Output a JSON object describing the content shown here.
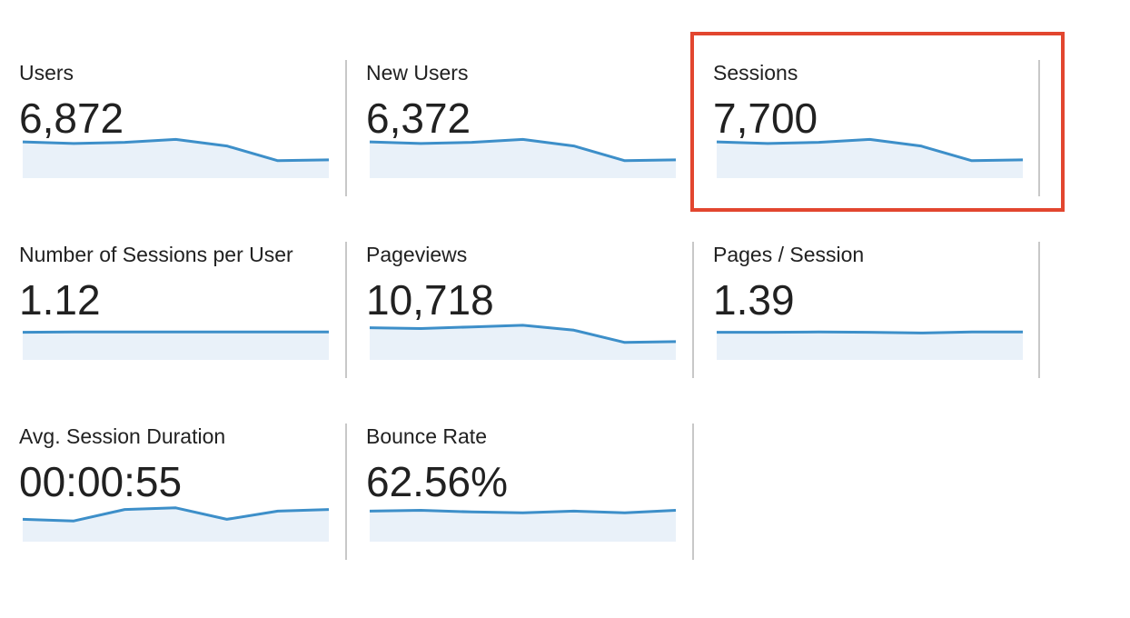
{
  "accent_color": "#3d8fc9",
  "area_fill": "#e9f1f9",
  "highlight_color": "#e2462f",
  "metrics": [
    {
      "label": "Users",
      "value": "6,872",
      "trend": [
        0.55,
        0.45,
        0.52,
        0.7,
        0.3,
        -0.6,
        -0.55
      ]
    },
    {
      "label": "New Users",
      "value": "6,372",
      "trend": [
        0.55,
        0.45,
        0.52,
        0.7,
        0.3,
        -0.6,
        -0.55
      ]
    },
    {
      "label": "Sessions",
      "value": "7,700",
      "trend": [
        0.55,
        0.45,
        0.52,
        0.7,
        0.3,
        -0.6,
        -0.55
      ]
    },
    {
      "label": "Number of Sessions per User",
      "value": "1.12",
      "trend": [
        0.02,
        0.04,
        0.04,
        0.04,
        0.04,
        0.04,
        0.04
      ]
    },
    {
      "label": "Pageviews",
      "value": "10,718",
      "trend": [
        0.3,
        0.25,
        0.35,
        0.45,
        0.15,
        -0.6,
        -0.55
      ]
    },
    {
      "label": "Pages / Session",
      "value": "1.39",
      "trend": [
        0.02,
        0.02,
        0.04,
        0.02,
        -0.02,
        0.04,
        0.04
      ]
    },
    {
      "label": "Avg. Session Duration",
      "value": "00:00:55",
      "trend": [
        -0.3,
        -0.4,
        0.3,
        0.4,
        -0.3,
        0.2,
        0.3
      ]
    },
    {
      "label": "Bounce Rate",
      "value": "62.56%",
      "trend": [
        0.2,
        0.25,
        0.15,
        0.1,
        0.2,
        0.1,
        0.25
      ]
    }
  ],
  "highlighted_metric": "Sessions"
}
